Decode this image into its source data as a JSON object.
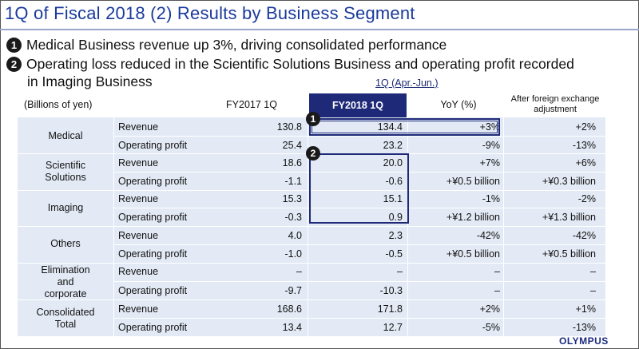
{
  "slide": {
    "title": "1Q of Fiscal 2018 (2) Results by Business Segment",
    "bullets": [
      {
        "num": "1",
        "text": "Medical Business revenue up 3%, driving consolidated performance"
      },
      {
        "num": "2",
        "text": "Operating loss reduced in the Scientific Solutions Business and operating profit recorded",
        "cont": "in Imaging Business"
      }
    ],
    "period_label": "1Q (Apr.-Jun.)",
    "logo": "OLYMPUS"
  },
  "table": {
    "unit": "(Billions of yen)",
    "col_fy2017": "FY2017 1Q",
    "col_fy2018": "FY2018 1Q",
    "col_yoy": "YoY (%)",
    "col_fx": "After foreign exchange adjustment",
    "segments": [
      {
        "name": "Medical",
        "rows": [
          {
            "metric": "Revenue",
            "fy2017": "130.8",
            "fy2018": "134.4",
            "yoy": "+3%",
            "fx": "+2%"
          },
          {
            "metric": "Operating profit",
            "fy2017": "25.4",
            "fy2018": "23.2",
            "yoy": "-9%",
            "fx": "-13%"
          }
        ]
      },
      {
        "name": "Scientific Solutions",
        "rows": [
          {
            "metric": "Revenue",
            "fy2017": "18.6",
            "fy2018": "20.0",
            "yoy": "+7%",
            "fx": "+6%"
          },
          {
            "metric": "Operating profit",
            "fy2017": "-1.1",
            "fy2018": "-0.6",
            "yoy": "+¥0.5 billion",
            "fx": "+¥0.3 billion"
          }
        ]
      },
      {
        "name": "Imaging",
        "rows": [
          {
            "metric": "Revenue",
            "fy2017": "15.3",
            "fy2018": "15.1",
            "yoy": "-1%",
            "fx": "-2%"
          },
          {
            "metric": "Operating profit",
            "fy2017": "-0.3",
            "fy2018": "0.9",
            "yoy": "+¥1.2 billion",
            "fx": "+¥1.3 billion"
          }
        ]
      },
      {
        "name": "Others",
        "rows": [
          {
            "metric": "Revenue",
            "fy2017": "4.0",
            "fy2018": "2.3",
            "yoy": "-42%",
            "fx": "-42%"
          },
          {
            "metric": "Operating profit",
            "fy2017": "-1.0",
            "fy2018": "-0.5",
            "yoy": "+¥0.5 billion",
            "fx": "+¥0.5 billion"
          }
        ]
      },
      {
        "name": "Elimination and corporate",
        "rows": [
          {
            "metric": "Revenue",
            "fy2017": "–",
            "fy2018": "–",
            "yoy": "–",
            "fx": "–"
          },
          {
            "metric": "Operating profit",
            "fy2017": "-9.7",
            "fy2018": "-10.3",
            "yoy": "–",
            "fx": "–"
          }
        ]
      },
      {
        "name": "Consolidated Total",
        "rows": [
          {
            "metric": "Revenue",
            "fy2017": "168.6",
            "fy2018": "171.8",
            "yoy": "+2%",
            "fx": "+1%"
          },
          {
            "metric": "Operating profit",
            "fy2017": "13.4",
            "fy2018": "12.7",
            "yoy": "-5%",
            "fx": "-13%"
          }
        ]
      }
    ],
    "callouts": [
      "1",
      "2"
    ]
  }
}
